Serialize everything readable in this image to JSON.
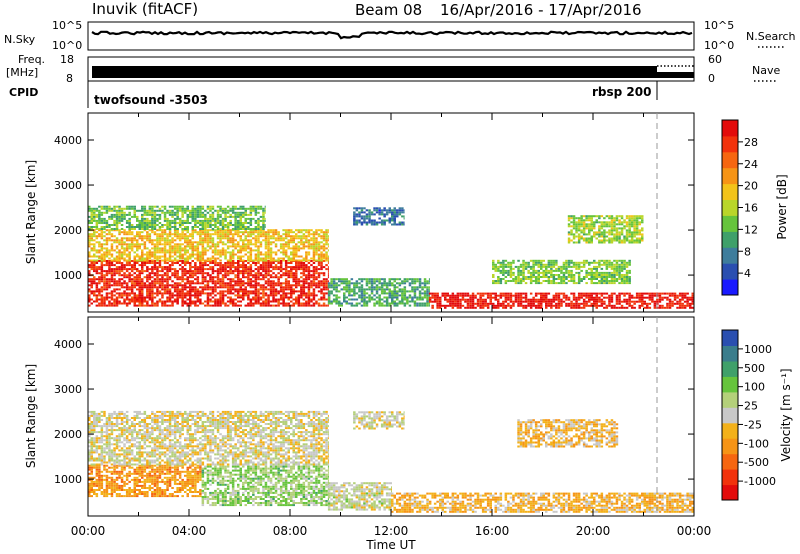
{
  "header": {
    "station": "Inuvik (fitACF)",
    "beam": "Beam 08",
    "date_range": "16/Apr/2016 - 17/Apr/2016"
  },
  "top_panels": {
    "nsky_label": "N.Sky",
    "nsky_ticks": [
      "10^5",
      "10^0"
    ],
    "nsearch_label": "N.Search",
    "nsearch_ticks": [
      "10^5",
      "10^0"
    ],
    "freq_label_line1": "Freq.",
    "freq_label_line2": "[MHz]",
    "freq_ticks": [
      "18",
      "8"
    ],
    "nave_label": "Nave",
    "nave_ticks": [
      "60",
      "0"
    ],
    "cpid_label": "CPID",
    "cpid_modes": [
      {
        "name": "twofsound -3503",
        "start_hour": 0
      },
      {
        "name": "rbsp 200",
        "start_hour": 22.5
      }
    ]
  },
  "chart_data": [
    {
      "type": "heatmap",
      "quantity": "Power",
      "ylabel": "Slant Range [km]",
      "xlabel": "Time UT",
      "x_unit": "UT hour",
      "xlim": [
        0,
        24
      ],
      "ylim": [
        180,
        4600
      ],
      "x_ticks": [
        "00:00",
        "04:00",
        "08:00",
        "12:00",
        "16:00",
        "20:00",
        "00:00"
      ],
      "y_ticks": [
        "1000",
        "2000",
        "3000",
        "4000"
      ],
      "colorbar": {
        "label": "Power [dB]",
        "ticks": [
          "28",
          "24",
          "20",
          "16",
          "12",
          "8",
          "4"
        ],
        "range": [
          0,
          30
        ],
        "colors": [
          "#1a1aff",
          "#2a4fb0",
          "#3e7d9c",
          "#3fa06a",
          "#66c43c",
          "#b9d62a",
          "#f3c31a",
          "#f69416",
          "#f66610",
          "#f2320c",
          "#e30b0b"
        ]
      },
      "echo_bands": [
        {
          "t_start": 0.0,
          "t_end": 9.5,
          "range_low": 300,
          "range_high": 1300,
          "level": 27
        },
        {
          "t_start": 0.0,
          "t_end": 9.5,
          "range_low": 1300,
          "range_high": 2000,
          "level": 18
        },
        {
          "t_start": 0.0,
          "t_end": 7.0,
          "range_low": 2000,
          "range_high": 2500,
          "level": 12
        },
        {
          "t_start": 9.5,
          "t_end": 13.5,
          "range_low": 300,
          "range_high": 900,
          "level": 10
        },
        {
          "t_start": 13.5,
          "t_end": 24.0,
          "range_low": 250,
          "range_high": 600,
          "level": 28
        },
        {
          "t_start": 16.0,
          "t_end": 21.5,
          "range_low": 800,
          "range_high": 1300,
          "level": 13
        },
        {
          "t_start": 19.0,
          "t_end": 22.0,
          "range_low": 1700,
          "range_high": 2300,
          "level": 14
        },
        {
          "t_start": 10.5,
          "t_end": 12.5,
          "range_low": 2100,
          "range_high": 2500,
          "level": 6
        }
      ]
    },
    {
      "type": "heatmap",
      "quantity": "Velocity",
      "ylabel": "Slant Range [km]",
      "xlabel": "Time UT",
      "x_unit": "UT hour",
      "xlim": [
        0,
        24
      ],
      "ylim": [
        180,
        4600
      ],
      "x_ticks": [
        "00:00",
        "04:00",
        "08:00",
        "12:00",
        "16:00",
        "20:00",
        "00:00"
      ],
      "y_ticks": [
        "1000",
        "2000",
        "3000",
        "4000"
      ],
      "colorbar": {
        "label": "Velocity [m s⁻¹]",
        "ticks": [
          "1000",
          "500",
          "100",
          "25",
          "-25",
          "-100",
          "-500",
          "-1000"
        ],
        "range": [
          -1200,
          1200
        ],
        "colors": [
          "#e30b0b",
          "#f2320c",
          "#f66610",
          "#f69416",
          "#f3b11a",
          "#c8c8c8",
          "#b4d07a",
          "#66c43c",
          "#3fa06a",
          "#3a7d8c",
          "#2a4fb0"
        ]
      },
      "echo_bands": [
        {
          "t_start": 0.0,
          "t_end": 4.5,
          "range_low": 600,
          "range_high": 1300,
          "level": -400
        },
        {
          "t_start": 0.0,
          "t_end": 9.5,
          "range_low": 1300,
          "range_high": 2500,
          "level": 0
        },
        {
          "t_start": 4.5,
          "t_end": 9.5,
          "range_low": 400,
          "range_high": 1300,
          "level": 300
        },
        {
          "t_start": 9.5,
          "t_end": 12.0,
          "range_low": 300,
          "range_high": 900,
          "level": 80
        },
        {
          "t_start": 12.0,
          "t_end": 24.0,
          "range_low": 250,
          "range_high": 700,
          "level": -250
        },
        {
          "t_start": 17.0,
          "t_end": 21.0,
          "range_low": 1700,
          "range_high": 2300,
          "level": -200
        },
        {
          "t_start": 10.5,
          "t_end": 12.5,
          "range_low": 2100,
          "range_high": 2500,
          "level": 0
        }
      ]
    }
  ]
}
